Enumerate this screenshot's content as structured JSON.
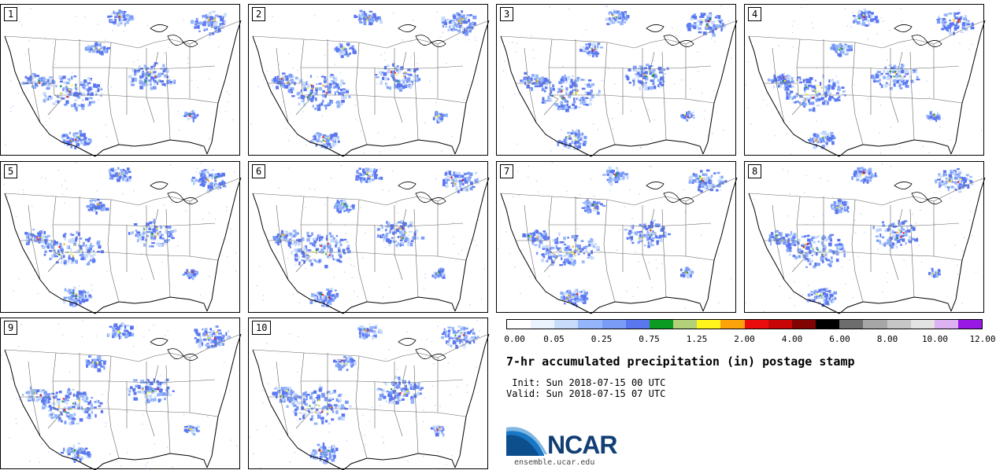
{
  "stamps": [
    {
      "label": "1"
    },
    {
      "label": "2"
    },
    {
      "label": "3"
    },
    {
      "label": "4"
    },
    {
      "label": "5"
    },
    {
      "label": "6"
    },
    {
      "label": "7"
    },
    {
      "label": "8"
    },
    {
      "label": "9"
    },
    {
      "label": "10"
    }
  ],
  "colorbar": {
    "colors": [
      "#ffffff",
      "#eaf3fe",
      "#c8dbfb",
      "#95b5fa",
      "#7a9bf6",
      "#5b77f0",
      "#0b9a22",
      "#b2d178",
      "#fff51c",
      "#fca20b",
      "#eb0d0d",
      "#c80606",
      "#810404",
      "#000000",
      "#6d6d6d",
      "#a6a6a6",
      "#c6c6c6",
      "#e3e3e3",
      "#dcb2f2",
      "#9a18e3"
    ],
    "ticks": [
      "0.00",
      "0.05",
      "0.25",
      "0.75",
      "1.25",
      "2.00",
      "4.00",
      "6.00",
      "8.00",
      "10.00",
      "12.00"
    ]
  },
  "title": "7-hr accumulated precipitation (in) postage stamp",
  "init_line": " Init: Sun 2018-07-15 00 UTC",
  "valid_line": "Valid: Sun 2018-07-15 07 UTC",
  "logo": {
    "text": "NCAR",
    "url": "ensemble.ucar.edu"
  }
}
